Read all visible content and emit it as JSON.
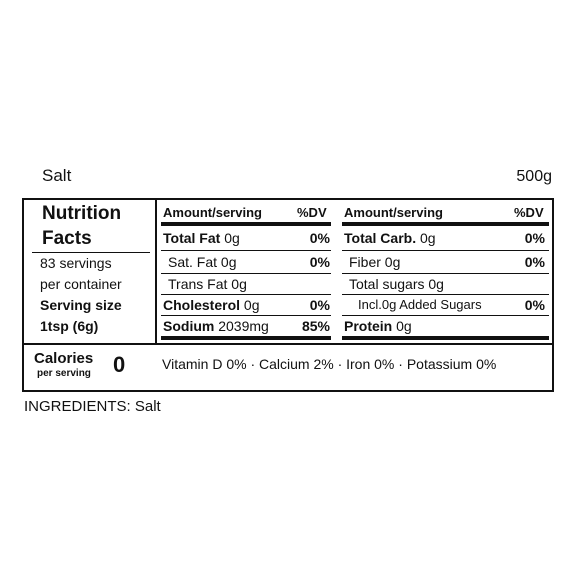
{
  "product": {
    "name": "Salt",
    "net_weight": "500g"
  },
  "panel": {
    "title_line1": "Nutrition",
    "title_line2": "Facts",
    "servings": "83 servings",
    "per_container": "per container",
    "serving_size_label": "Serving size",
    "serving_size_value": "1tsp (6g)"
  },
  "headers": {
    "amount_left": "Amount/serving",
    "dv_left": "%DV",
    "amount_right": "Amount/serving",
    "dv_right": "%DV"
  },
  "left_rows": [
    {
      "name": "Total Fat",
      "amount": "0g",
      "dv": "0%"
    },
    {
      "name": "Sat. Fat",
      "amount": "0g",
      "dv": "0%"
    },
    {
      "name": "Trans Fat",
      "amount": "0g",
      "dv": ""
    },
    {
      "name": "Cholesterol",
      "amount": "0g",
      "dv": "0%"
    },
    {
      "name": "Sodium",
      "amount": "2039mg",
      "dv": "85%"
    }
  ],
  "right_rows": [
    {
      "name": "Total Carb.",
      "amount": "0g",
      "dv": "0%"
    },
    {
      "name": "Fiber",
      "amount": "0g",
      "dv": "0%"
    },
    {
      "name": "Total sugars",
      "amount": "0g",
      "dv": ""
    },
    {
      "name": "Incl.0g Added Sugars",
      "amount": "",
      "dv": "0%"
    },
    {
      "name": "Protein",
      "amount": "0g",
      "dv": ""
    }
  ],
  "calories": {
    "label": "Calories",
    "per_serving": "per serving",
    "value": "0"
  },
  "vitamins": "Vitamin D 0% · Calcium 2% · Iron 0% · Potassium 0%",
  "ingredients": "INGREDIENTS: Salt"
}
